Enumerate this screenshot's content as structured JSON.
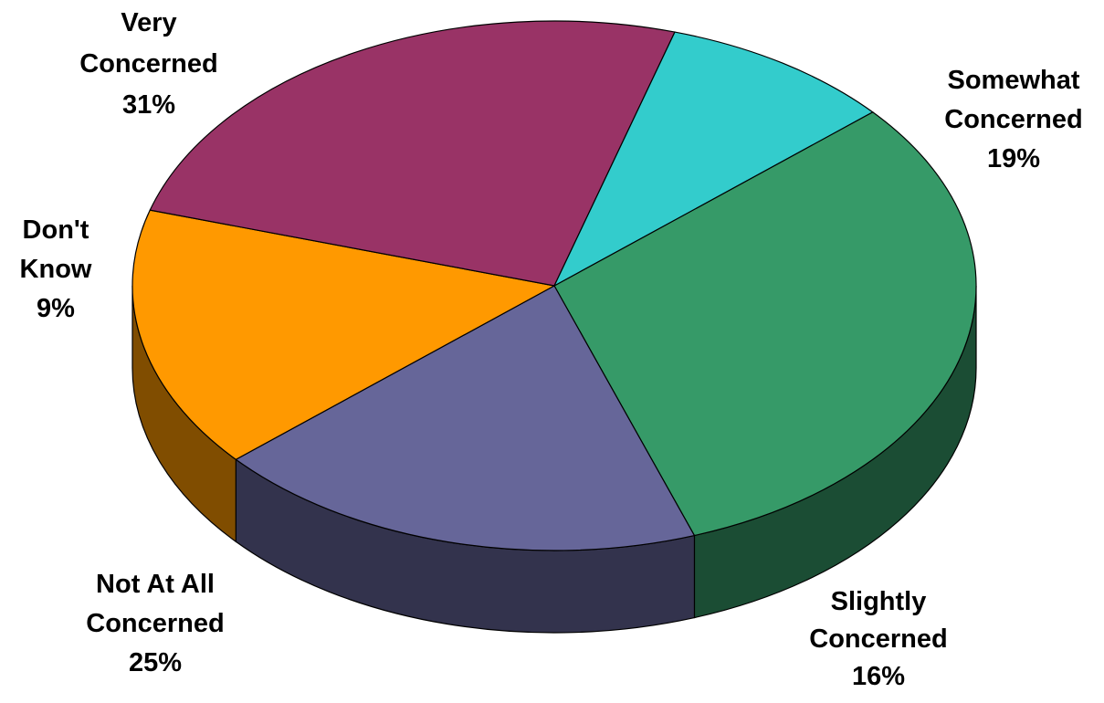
{
  "chart_data": {
    "type": "pie",
    "style": "3d",
    "title": "",
    "unit": "%",
    "slices": [
      {
        "label": "Very Concerned",
        "value": 31,
        "value_label": "31%",
        "color": "#369A68"
      },
      {
        "label": "Somewhat Concerned",
        "value": 19,
        "value_label": "19%",
        "color": "#666699"
      },
      {
        "label": "Slightly Concerned",
        "value": 16,
        "value_label": "16%",
        "color": "#FF9900"
      },
      {
        "label": "Not At All Concerned",
        "value": 25,
        "value_label": "25%",
        "color": "#993366"
      },
      {
        "label": "Don't Know",
        "value": 9,
        "value_label": "9%",
        "color": "#33CCCC"
      }
    ],
    "label_lines": [
      [
        "Very",
        "Concerned",
        "31%"
      ],
      [
        "Somewhat",
        "Concerned",
        "19%"
      ],
      [
        "Slightly",
        "Concerned",
        "16%"
      ],
      [
        "Not At All",
        "Concerned",
        "25%"
      ],
      [
        "Don't",
        "Know",
        "9%"
      ]
    ],
    "legend": "none"
  }
}
